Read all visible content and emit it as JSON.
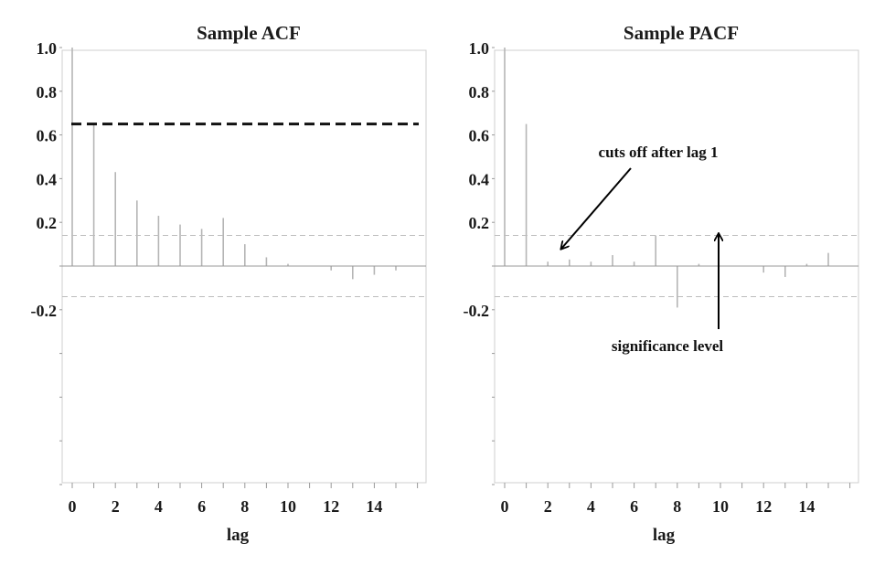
{
  "chart_data": [
    {
      "type": "bar",
      "title": "Sample ACF",
      "xlabel": "lag",
      "ylabel": "",
      "xlim": [
        -0.5,
        16
      ],
      "ylim": [
        -1.0,
        1.0
      ],
      "x": [
        0,
        1,
        2,
        3,
        4,
        5,
        6,
        7,
        8,
        9,
        10,
        11,
        12,
        13,
        14,
        15
      ],
      "values": [
        1.0,
        0.65,
        0.43,
        0.3,
        0.23,
        0.19,
        0.17,
        0.22,
        0.1,
        0.04,
        0.01,
        0.0,
        -0.02,
        -0.06,
        -0.04,
        -0.02
      ],
      "x_ticks": [
        "0",
        "2",
        "4",
        "6",
        "8",
        "10",
        "12",
        "14"
      ],
      "y_ticks": [
        "1.0",
        "0.8",
        "0.6",
        "0.4",
        "0.2",
        "-0.2"
      ],
      "significance": [
        0.14,
        -0.14
      ],
      "reference_line": 0.65,
      "grid": false,
      "colors": {
        "bars": "#b5b5b5",
        "reference": "#111111",
        "significance": "#bdbdbd",
        "axis": "#999999"
      }
    },
    {
      "type": "bar",
      "title": "Sample PACF",
      "xlabel": "lag",
      "ylabel": "",
      "xlim": [
        -0.5,
        16
      ],
      "ylim": [
        -1.0,
        1.0
      ],
      "x": [
        0,
        1,
        2,
        3,
        4,
        5,
        6,
        7,
        8,
        9,
        10,
        11,
        12,
        13,
        14,
        15
      ],
      "values": [
        1.0,
        0.65,
        0.02,
        0.03,
        0.02,
        0.05,
        0.02,
        0.14,
        -0.19,
        0.01,
        0.0,
        0.0,
        -0.03,
        -0.05,
        0.01,
        0.06
      ],
      "x_ticks": [
        "0",
        "2",
        "4",
        "6",
        "8",
        "10",
        "12",
        "14"
      ],
      "y_ticks": [
        "1.0",
        "0.8",
        "0.6",
        "0.4",
        "0.2",
        "-0.2"
      ],
      "significance": [
        0.14,
        -0.14
      ],
      "annotations": [
        {
          "text": "cuts off after lag 1",
          "arrow_to": [
            2.4,
            0.07
          ]
        },
        {
          "text": "significance level",
          "arrow_to": [
            10,
            0.16
          ]
        }
      ],
      "grid": false,
      "colors": {
        "bars": "#b5b5b5",
        "arrow": "#000000",
        "significance": "#bdbdbd",
        "axis": "#999999"
      }
    }
  ]
}
